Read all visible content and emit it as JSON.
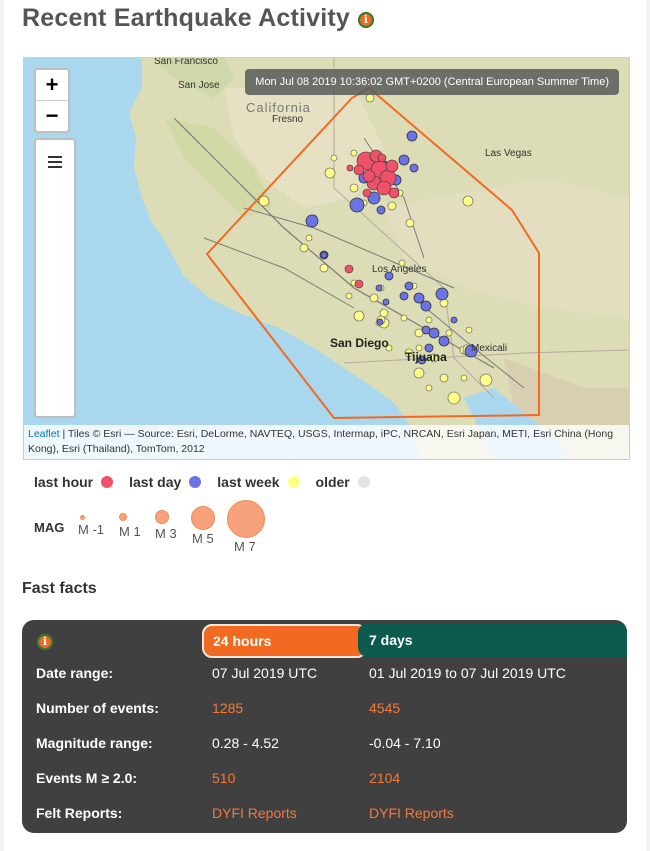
{
  "page": {
    "title": "Recent Earthquake Activity"
  },
  "map": {
    "timestamp": "Mon Jul 08 2019 10:36:02 GMT+0200 (Central European Summer Time)",
    "zoom_in_label": "+",
    "zoom_out_label": "−",
    "attribution_link": "Leaflet",
    "attribution_text": " | Tiles © Esri — Source: Esri, DeLorme, NAVTEQ, USGS, Intermap, iPC, NRCAN, Esri Japan, METI, Esri China (Hong Kong), Esri (Thailand), TomTom, 2012",
    "labels": {
      "san_francisco": "San Francisco",
      "san_jose": "San Jose",
      "california": "California",
      "fresno": "Fresno",
      "las_vegas": "Las Vegas",
      "los_angeles": "Los Angeles",
      "san_diego": "San Diego",
      "tijuana": "Tijuana",
      "mexicali": "Mexicali"
    }
  },
  "legend": {
    "age": [
      {
        "label": "last hour",
        "color": "#f0516a"
      },
      {
        "label": "last day",
        "color": "#f0516a"
      },
      {
        "label": "last week",
        "color": "#6b73e6"
      },
      {
        "label": "older",
        "color": "#ffff84"
      },
      {
        "label": "",
        "color": "#e3e3e3"
      }
    ],
    "mag_label": "MAG",
    "mags": [
      "M -1",
      "M 1",
      "M 3",
      "M 5",
      "M 7"
    ]
  },
  "fast_facts": {
    "heading": "Fast facts",
    "tab_24h": "24 hours",
    "tab_7d": "7 days",
    "rows": [
      {
        "label": "Date range:",
        "day": "07 Jul 2019 UTC",
        "week": "01 Jul 2019 to 07 Jul 2019 UTC"
      },
      {
        "label": "Number of events:",
        "day": "1285",
        "week": "4545"
      },
      {
        "label": "Magnitude range:",
        "day": "0.28 - 4.52",
        "week": "-0.04 - 7.10"
      },
      {
        "label": "Events M ≥ 2.0:",
        "day": "510",
        "week": "2104"
      },
      {
        "label": "Felt Reports:",
        "day": "DYFI Reports",
        "week": "DYFI Reports"
      }
    ]
  },
  "colors": {
    "accent_orange": "#f26a21",
    "dark_teal": "#0d5a4e",
    "panel_bg": "#404040",
    "link": "#f5793a"
  }
}
